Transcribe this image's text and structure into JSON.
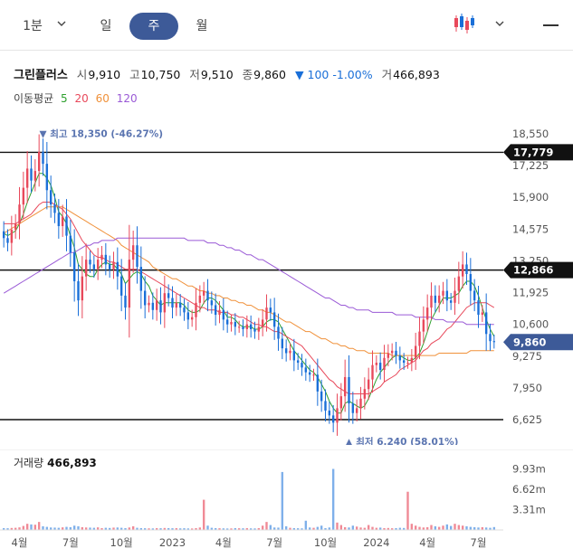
{
  "periods": [
    {
      "label": "1분",
      "active": false
    },
    {
      "label": "일",
      "active": false
    },
    {
      "label": "주",
      "active": true
    },
    {
      "label": "월",
      "active": false
    }
  ],
  "icons": {
    "period_dropdown": "chevron-down-icon",
    "chart_type": "candlestick-icon",
    "chart_type_dropdown": "chevron-down-icon",
    "menu": "menu-icon"
  },
  "stock": {
    "name": "그린플러스",
    "open_label": "시",
    "open": "9,910",
    "high_label": "고",
    "high": "10,750",
    "low_label": "저",
    "low": "9,510",
    "close_label": "종",
    "close": "9,860",
    "change": "▼ 100 -1.00%",
    "volume_label": "거",
    "volume": "466,893"
  },
  "moving_average": {
    "label": "이동평균",
    "lines": [
      {
        "period": "5",
        "color": "#2ea02e"
      },
      {
        "period": "20",
        "color": "#e8495b"
      },
      {
        "period": "60",
        "color": "#f0913a"
      },
      {
        "period": "120",
        "color": "#9a5ad6"
      }
    ]
  },
  "volume_panel": {
    "label": "거래량",
    "value": "466,893"
  },
  "chart_data": [
    {
      "type": "candlestick",
      "y_ticks": [
        "18,550",
        "17,225",
        "15,900",
        "14,575",
        "13,250",
        "11,925",
        "10,600",
        "9,275",
        "7,950",
        "6,625"
      ],
      "y_tick_values": [
        18550,
        17225,
        15900,
        14575,
        13250,
        11925,
        10600,
        9275,
        7950,
        6625
      ],
      "ylim": [
        6000,
        18900
      ],
      "x_ticks": [
        "4월",
        "7월",
        "10월",
        "2023",
        "4월",
        "7월",
        "10월",
        "2024",
        "4월",
        "7월"
      ],
      "x_tick_index": [
        4,
        17,
        30,
        43,
        56,
        69,
        82,
        95,
        108,
        121
      ],
      "horizontal_lines": [
        {
          "value": 17779,
          "label": "17,779",
          "color": "#111111"
        },
        {
          "value": 12866,
          "label": "12,866",
          "color": "#111111"
        },
        {
          "value": 6625,
          "label": "",
          "color": "#111111"
        }
      ],
      "current_price": {
        "value": 9860,
        "label": "9,860",
        "color": "#3d5a98"
      },
      "annotations": [
        {
          "text": "▼ 최고 18,350 (-46.27%)",
          "index": 10,
          "value": 18350,
          "position": "above"
        },
        {
          "text": "▲ 최저 6,240 (58.01%)",
          "index": 88,
          "value": 6240,
          "position": "below"
        }
      ],
      "up_color": "#e8495b",
      "down_color": "#1a6fd8",
      "closes": [
        14200,
        14000,
        14550,
        14800,
        15600,
        16300,
        17100,
        16600,
        17000,
        17800,
        17300,
        16200,
        15600,
        15250,
        14700,
        15100,
        14300,
        13600,
        12400,
        11600,
        12600,
        13300,
        13100,
        12900,
        13300,
        13500,
        13100,
        12900,
        13200,
        12600,
        11800,
        11300,
        13300,
        13900,
        13000,
        12000,
        11400,
        11500,
        11200,
        11600,
        11100,
        11900,
        11700,
        11300,
        11500,
        11300,
        11100,
        10800,
        10900,
        11500,
        11800,
        12000,
        11600,
        11400,
        11000,
        11200,
        10800,
        10600,
        10700,
        10500,
        10500,
        10400,
        10600,
        10400,
        10300,
        10500,
        10800,
        11300,
        11100,
        10500,
        10000,
        9600,
        9400,
        9500,
        9100,
        9000,
        8800,
        8600,
        8500,
        8500,
        7800,
        7400,
        7000,
        6800,
        6500,
        7100,
        7600,
        8400,
        7300,
        6900,
        7100,
        7500,
        7900,
        8300,
        8900,
        9000,
        8700,
        9200,
        9400,
        9500,
        9300,
        9100,
        9000,
        9000,
        9200,
        9700,
        10300,
        10800,
        11300,
        11800,
        11500,
        11800,
        12000,
        11600,
        11500,
        12000,
        12600,
        13100,
        12700,
        12000,
        11600,
        11000,
        11100,
        10200,
        9900,
        9860
      ],
      "ma5": [
        14400,
        14300,
        14400,
        14500,
        14800,
        15200,
        15700,
        16100,
        16500,
        16900,
        16900,
        16700,
        16400,
        15900,
        15300,
        15100,
        14800,
        14300,
        13800,
        13100,
        12900,
        12700,
        12600,
        12600,
        12900,
        13100,
        13200,
        13100,
        13100,
        12900,
        12700,
        12300,
        12500,
        12700,
        12800,
        12700,
        12400,
        12200,
        11800,
        11600,
        11400,
        11500,
        11500,
        11500,
        11500,
        11500,
        11400,
        11200,
        11100,
        11100,
        11200,
        11500,
        11700,
        11700,
        11600,
        11400,
        11200,
        10900,
        10900,
        10800,
        10600,
        10500,
        10500,
        10500,
        10400,
        10400,
        10500,
        10700,
        10800,
        10800,
        10700,
        10400,
        10100,
        9800,
        9500,
        9300,
        9100,
        8900,
        8700,
        8600,
        8400,
        8100,
        7800,
        7400,
        7100,
        6900,
        6900,
        7300,
        7400,
        7300,
        7200,
        7100,
        7200,
        7500,
        7900,
        8300,
        8600,
        8800,
        9000,
        9200,
        9300,
        9300,
        9200,
        9100,
        9100,
        9200,
        9400,
        9800,
        10300,
        10800,
        11100,
        11400,
        11700,
        11700,
        11700,
        11800,
        11900,
        12200,
        12400,
        12400,
        12200,
        11800,
        11300,
        10800,
        10400,
        10100
      ],
      "ma20": [
        14800,
        14800,
        14800,
        14800,
        14900,
        15000,
        15100,
        15200,
        15400,
        15600,
        15700,
        15700,
        15700,
        15600,
        15500,
        15400,
        15200,
        15000,
        14700,
        14400,
        14100,
        13900,
        13700,
        13500,
        13400,
        13400,
        13300,
        13200,
        13200,
        13100,
        13000,
        12900,
        12900,
        12900,
        12900,
        12800,
        12700,
        12600,
        12500,
        12400,
        12300,
        12200,
        12100,
        12000,
        11900,
        11800,
        11700,
        11600,
        11500,
        11400,
        11300,
        11300,
        11200,
        11200,
        11200,
        11100,
        11100,
        11100,
        11000,
        11000,
        10900,
        10900,
        10800,
        10700,
        10600,
        10600,
        10500,
        10500,
        10400,
        10300,
        10300,
        10200,
        10100,
        10000,
        9900,
        9800,
        9700,
        9500,
        9300,
        9100,
        8900,
        8700,
        8500,
        8300,
        8200,
        8000,
        7900,
        7800,
        7700,
        7700,
        7700,
        7700,
        7700,
        7700,
        7800,
        7900,
        8000,
        8200,
        8300,
        8400,
        8500,
        8700,
        8800,
        8900,
        9000,
        9100,
        9300,
        9500,
        9600,
        9800,
        9900,
        10000,
        10200,
        10400,
        10500,
        10700,
        10900,
        11100,
        11300,
        11400,
        11500,
        11500,
        11500,
        11500,
        11400,
        11300
      ],
      "ma60": [
        14400,
        14500,
        14600,
        14700,
        14800,
        14900,
        15000,
        15100,
        15200,
        15300,
        15400,
        15500,
        15500,
        15500,
        15500,
        15500,
        15400,
        15300,
        15200,
        15100,
        15000,
        14900,
        14800,
        14700,
        14600,
        14500,
        14400,
        14300,
        14200,
        14100,
        13900,
        13800,
        13700,
        13600,
        13500,
        13400,
        13300,
        13200,
        13000,
        12900,
        12800,
        12700,
        12600,
        12500,
        12500,
        12400,
        12300,
        12200,
        12200,
        12100,
        12000,
        12000,
        11900,
        11900,
        11800,
        11800,
        11700,
        11700,
        11600,
        11600,
        11500,
        11500,
        11400,
        11400,
        11300,
        11200,
        11200,
        11100,
        11100,
        11000,
        10900,
        10800,
        10700,
        10700,
        10600,
        10500,
        10400,
        10300,
        10300,
        10200,
        10100,
        10000,
        10000,
        9900,
        9800,
        9800,
        9700,
        9700,
        9600,
        9600,
        9500,
        9500,
        9500,
        9400,
        9400,
        9400,
        9400,
        9400,
        9400,
        9300,
        9300,
        9300,
        9300,
        9300,
        9300,
        9300,
        9300,
        9300,
        9300,
        9300,
        9300,
        9400,
        9400,
        9400,
        9400,
        9400,
        9400,
        9400,
        9400,
        9500,
        9500,
        9500,
        9500,
        9500,
        9500,
        9500
      ],
      "ma120": [
        11900,
        12000,
        12100,
        12200,
        12300,
        12400,
        12500,
        12600,
        12700,
        12800,
        12900,
        13000,
        13100,
        13200,
        13300,
        13400,
        13500,
        13600,
        13600,
        13700,
        13800,
        13900,
        13900,
        14000,
        14000,
        14100,
        14100,
        14100,
        14100,
        14200,
        14200,
        14200,
        14200,
        14200,
        14200,
        14200,
        14200,
        14200,
        14200,
        14200,
        14200,
        14200,
        14200,
        14200,
        14200,
        14200,
        14200,
        14100,
        14100,
        14100,
        14100,
        14100,
        14000,
        14000,
        14000,
        13900,
        13900,
        13800,
        13800,
        13700,
        13700,
        13600,
        13500,
        13500,
        13400,
        13300,
        13300,
        13200,
        13100,
        13000,
        12900,
        12800,
        12700,
        12600,
        12500,
        12400,
        12300,
        12200,
        12100,
        12000,
        11900,
        11800,
        11700,
        11700,
        11600,
        11500,
        11400,
        11400,
        11300,
        11300,
        11200,
        11200,
        11200,
        11200,
        11100,
        11100,
        11100,
        11100,
        11100,
        11100,
        11000,
        11000,
        11000,
        11000,
        11000,
        10900,
        10900,
        10900,
        10900,
        10900,
        10800,
        10800,
        10800,
        10700,
        10700,
        10700,
        10700,
        10700,
        10600,
        10600,
        10600,
        10600,
        10600,
        10600,
        10600,
        10600
      ]
    },
    {
      "type": "bar",
      "title": "거래량",
      "y_ticks": [
        "9.93m",
        "6.62m",
        "3.31m"
      ],
      "y_tick_values": [
        9930000,
        6620000,
        3310000
      ],
      "ylim": [
        0,
        11000000
      ],
      "values": [
        300000,
        280000,
        320000,
        350000,
        420000,
        650000,
        1000000,
        900000,
        850000,
        1300000,
        600000,
        500000,
        400000,
        380000,
        350000,
        420000,
        500000,
        450000,
        700000,
        600000,
        450000,
        400000,
        380000,
        350000,
        420000,
        300000,
        350000,
        320000,
        380000,
        400000,
        350000,
        300000,
        400000,
        600000,
        350000,
        300000,
        280000,
        260000,
        250000,
        300000,
        280000,
        320000,
        300000,
        280000,
        300000,
        260000,
        280000,
        250000,
        240000,
        300000,
        400000,
        4900000,
        700000,
        350000,
        300000,
        280000,
        260000,
        240000,
        250000,
        300000,
        280000,
        270000,
        300000,
        260000,
        250000,
        300000,
        700000,
        1300000,
        800000,
        400000,
        380000,
        9400000,
        600000,
        350000,
        300000,
        280000,
        260000,
        1500000,
        400000,
        350000,
        500000,
        700000,
        300000,
        400000,
        9900000,
        1200000,
        800000,
        450000,
        400000,
        700000,
        550000,
        400000,
        350000,
        800000,
        500000,
        350000,
        380000,
        300000,
        320000,
        280000,
        300000,
        350000,
        320000,
        6200000,
        1000000,
        700000,
        500000,
        400000,
        450000,
        800000,
        600000,
        500000,
        700000,
        900000,
        650000,
        1000000,
        800000,
        700000,
        600000,
        500000,
        450000,
        400000,
        450000,
        400000,
        350000,
        466893
      ]
    }
  ]
}
